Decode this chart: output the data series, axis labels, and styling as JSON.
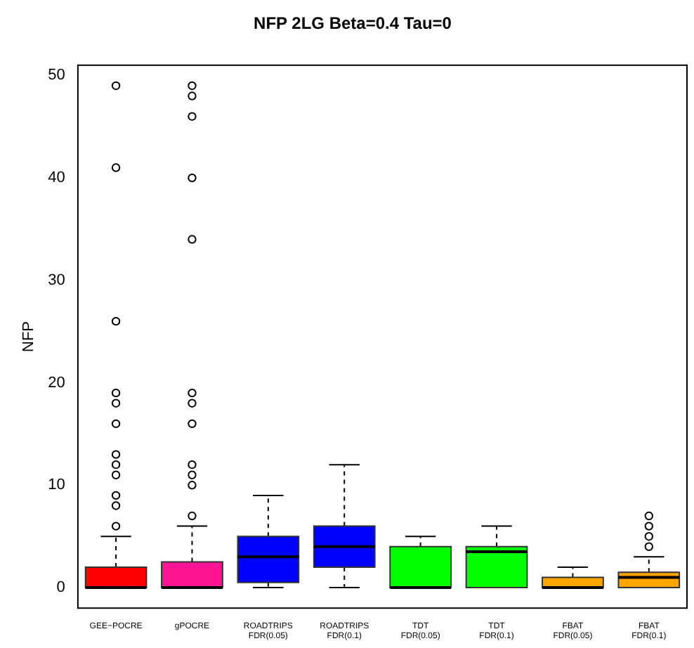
{
  "chart_data": {
    "type": "box",
    "title": "NFP 2LG Beta=0.4 Tau=0",
    "ylabel": "NFP",
    "categories": [
      "GEE−POCRE",
      "gPOCRE",
      "ROADTRIPS FDR(0.05)",
      "ROADTRIPS FDR(0.1)",
      "TDT FDR(0.05)",
      "TDT FDR(0.1)",
      "FBAT FDR(0.05)",
      "FBAT FDR(0.1)"
    ],
    "colors": [
      "#ff0000",
      "#ff1493",
      "#0000ff",
      "#0000ff",
      "#00ff00",
      "#00ff00",
      "#ffa500",
      "#ffa500"
    ],
    "boxes": [
      {
        "low": 0,
        "q1": 0,
        "median": 0,
        "q3": 2,
        "high": 5,
        "outliers": [
          6,
          8,
          9,
          11,
          12,
          13,
          16,
          18,
          19,
          26,
          41,
          49
        ]
      },
      {
        "low": 0,
        "q1": 0,
        "median": 0,
        "q3": 2.5,
        "high": 6,
        "outliers": [
          7,
          10,
          11,
          12,
          16,
          18,
          19,
          34,
          40,
          46,
          48,
          49
        ]
      },
      {
        "low": 0,
        "q1": 0.5,
        "median": 3,
        "q3": 5,
        "high": 9
      },
      {
        "low": 0,
        "q1": 2,
        "median": 4,
        "q3": 6,
        "high": 12
      },
      {
        "low": 0,
        "q1": 0,
        "median": 0,
        "q3": 4,
        "high": 5
      },
      {
        "low": 0,
        "q1": 0,
        "median": 3.5,
        "q3": 4,
        "high": 6
      },
      {
        "low": 0,
        "q1": 0,
        "median": 0,
        "q3": 1,
        "high": 2
      },
      {
        "low": 0,
        "q1": 0,
        "median": 1,
        "q3": 1.5,
        "high": 3,
        "outliers": [
          4,
          5,
          6,
          7
        ]
      }
    ],
    "ylim": [
      -2,
      51
    ],
    "yticks": [
      0,
      10,
      20,
      30,
      40,
      50
    ],
    "grid": false,
    "legend": false
  }
}
